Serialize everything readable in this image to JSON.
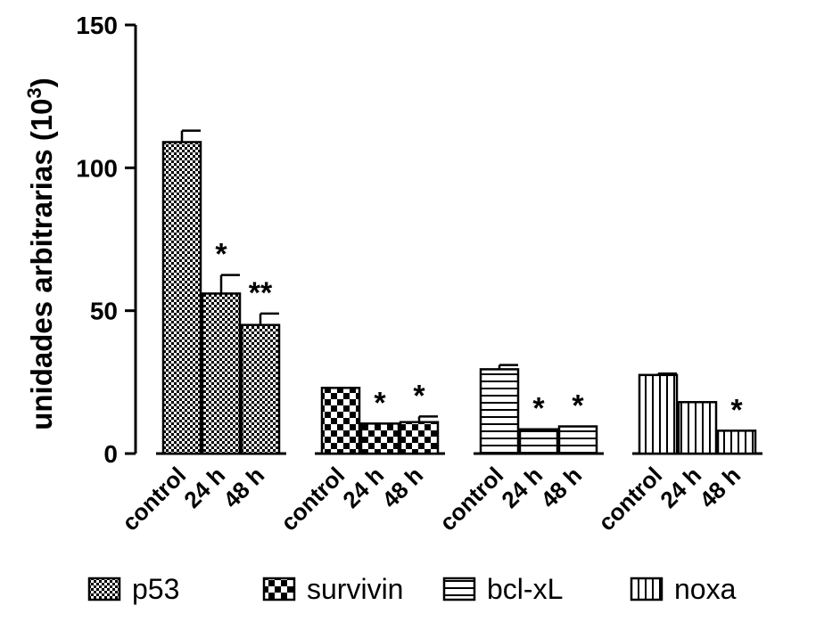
{
  "chart_data": {
    "type": "bar",
    "ylabel": "unidades arbitrarias (10",
    "ylabel_sup": "3",
    "ylabel_close": ")",
    "ylim": [
      0,
      150
    ],
    "yticks": [
      "0",
      "50",
      "100",
      "150"
    ],
    "ytick_values": [
      0,
      50,
      100,
      150
    ],
    "categories": [
      "control",
      "24 h",
      "48 h"
    ],
    "legend_position": "bottom",
    "series": [
      {
        "name": "p53",
        "pattern": "checker-fine",
        "values": [
          109,
          56,
          45
        ],
        "errors": [
          4,
          6.5,
          4
        ],
        "significance": [
          "",
          "*",
          "**"
        ]
      },
      {
        "name": "survivin",
        "pattern": "checker-coarse",
        "values": [
          23,
          10.5,
          11
        ],
        "errors": [
          0,
          0,
          2
        ],
        "significance": [
          "",
          "*",
          "*"
        ]
      },
      {
        "name": "bcl-xL",
        "pattern": "horizontal-stripes",
        "values": [
          29.5,
          8.5,
          9.5
        ],
        "errors": [
          1.5,
          0,
          0
        ],
        "significance": [
          "",
          "*",
          "*"
        ]
      },
      {
        "name": "noxa",
        "pattern": "vertical-stripes",
        "values": [
          27.5,
          18,
          8
        ],
        "errors": [
          0.5,
          0,
          0
        ],
        "significance": [
          "",
          "",
          "*"
        ]
      }
    ]
  }
}
